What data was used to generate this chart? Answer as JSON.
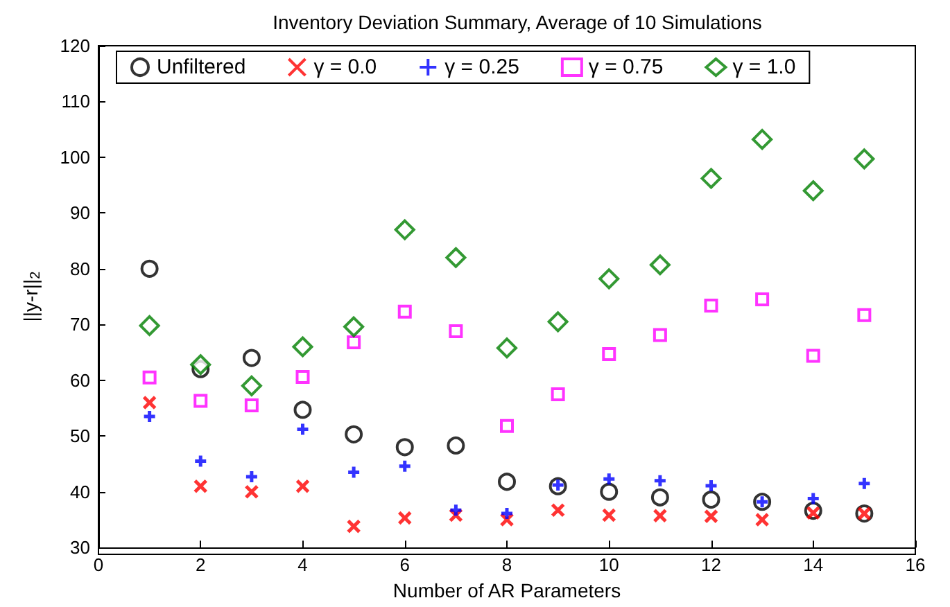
{
  "chart_data": {
    "type": "scatter",
    "title": "Inventory Deviation Summary, Average of 10 Simulations",
    "xlabel": "Number of AR Parameters",
    "ylabel": "||y-r||$_{2}$",
    "x": [
      1,
      2,
      3,
      4,
      5,
      6,
      7,
      8,
      9,
      10,
      11,
      12,
      13,
      14,
      15
    ],
    "series": [
      {
        "name": "Unfiltered",
        "color": "#000000",
        "marker": "circle",
        "values": [
          80,
          62,
          64,
          54.7,
          50.3,
          48,
          48.3,
          41.8,
          41,
          40,
          39,
          38.6,
          38.2,
          36.6,
          36.1
        ]
      },
      {
        "name": "γ = 0.0",
        "color": "#ff0000",
        "marker": "x",
        "values": [
          56,
          41,
          40,
          41,
          33.8,
          35.3,
          35.8,
          35,
          36.7,
          35.8,
          35.7,
          35.6,
          35,
          36.2,
          36.1
        ]
      },
      {
        "name": "γ = 0.25",
        "color": "#0000ff",
        "marker": "cross",
        "values": [
          53.5,
          45.5,
          42.7,
          51.2,
          43.5,
          44.6,
          36.7,
          36.1,
          41.2,
          42.3,
          42,
          41.1,
          38.2,
          38.8,
          41.5
        ]
      },
      {
        "name": "γ = 0.75",
        "color": "#ff00ff",
        "marker": "square",
        "values": [
          60.5,
          56.3,
          55.5,
          60.6,
          66.8,
          72.3,
          68.8,
          51.8,
          57.5,
          64.7,
          68.1,
          73.4,
          74.5,
          64.4,
          71.7
        ]
      },
      {
        "name": "γ = 1.0",
        "color": "#008000",
        "marker": "diamond",
        "values": [
          69.8,
          62.8,
          59,
          66,
          69.6,
          87,
          82,
          65.8,
          70.5,
          78.2,
          80.7,
          96.2,
          103.2,
          94,
          99.7
        ]
      }
    ],
    "xlim": [
      0,
      16
    ],
    "xticks": [
      0,
      2,
      4,
      6,
      8,
      10,
      12,
      14,
      16
    ],
    "ylim": [
      30,
      120
    ],
    "yticks": [
      30,
      40,
      50,
      60,
      70,
      80,
      90,
      100,
      110,
      120
    ],
    "grid": false,
    "legend": "top"
  }
}
